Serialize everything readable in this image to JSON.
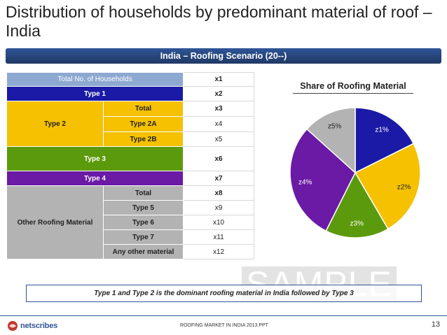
{
  "slide": {
    "title": "Distribution of households by predominant material of roof – India",
    "banner": "India – Roofing Scenario (20--)",
    "note": "Type 1 and Type 2 is the dominant roofing material in India followed by Type 3",
    "watermark": "SAMPLE"
  },
  "table": {
    "total_label": "Total No. of Households",
    "total_value": "x1",
    "type1_label": "Type 1",
    "type1_value": "x2",
    "type2_label": "Type 2",
    "type2_rows": [
      {
        "label": "Total",
        "value": "x3"
      },
      {
        "label": "Type 2A",
        "value": "x4"
      },
      {
        "label": "Type 2B",
        "value": "x5"
      }
    ],
    "type3_label": "Type 3",
    "type3_value": "x6",
    "type4_label": "Type 4",
    "type4_value": "x7",
    "other_label": "Other Roofing Material",
    "other_rows": [
      {
        "label": "Total",
        "value": "x8"
      },
      {
        "label": "Type 5",
        "value": "x9"
      },
      {
        "label": "Type 6",
        "value": "x10"
      },
      {
        "label": "Type 7",
        "value": "x11"
      },
      {
        "label": "Any other material",
        "value": "x12"
      }
    ]
  },
  "chart_data": {
    "type": "pie",
    "title": "Share of Roofing Material",
    "labels": [
      "z1%",
      "z2%",
      "z3%",
      "z4%",
      "z5%"
    ],
    "values": [
      17.6,
      24.0,
      15.8,
      29.3,
      13.3
    ],
    "colors": [
      "#1a1aa6",
      "#f5c100",
      "#5c9a0d",
      "#6a1aa5",
      "#b3b3b3"
    ]
  },
  "footer": {
    "logo_text": "netscribes",
    "center_text": "ROOFING MARKET IN INDIA 2013.PPT",
    "page_number": "13"
  }
}
